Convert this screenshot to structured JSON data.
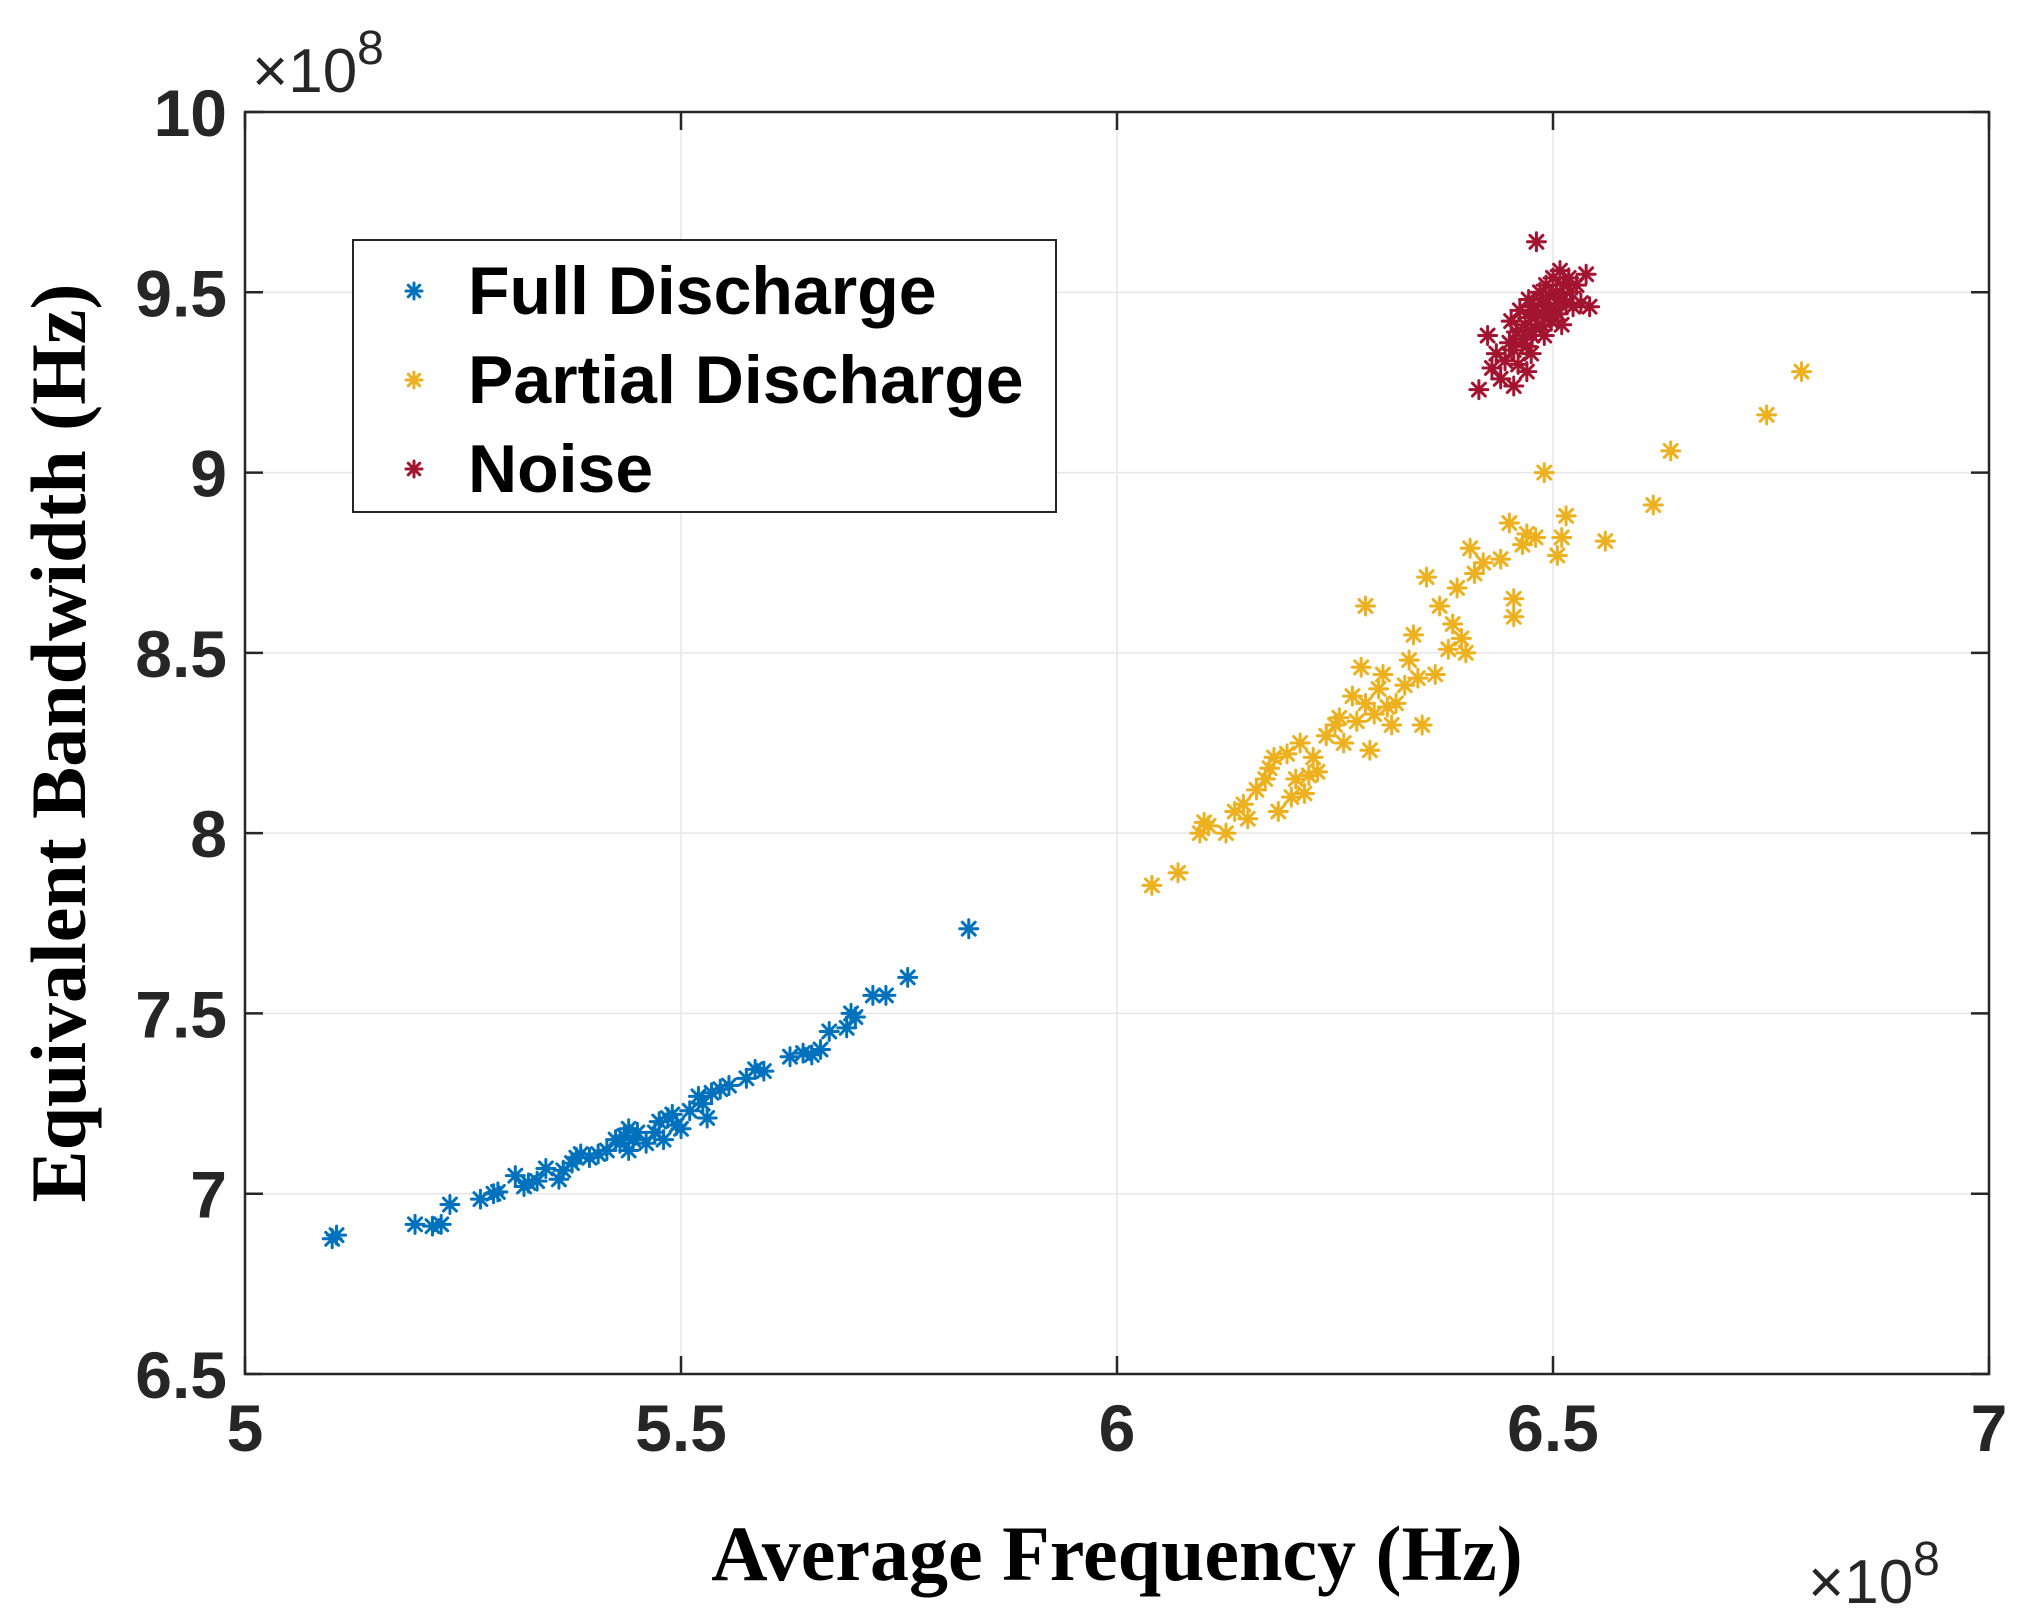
{
  "chart_data": {
    "type": "scatter",
    "xlabel": "Average Frequency (Hz)",
    "ylabel": "Equivalent Bandwidth (Hz)",
    "x_exponent_label": "×10",
    "x_exponent_power": "8",
    "y_exponent_label": "×10",
    "y_exponent_power": "8",
    "xlim": [
      5,
      7
    ],
    "ylim": [
      6.5,
      10
    ],
    "x_ticks": [
      "5",
      "5.5",
      "6",
      "6.5",
      "7"
    ],
    "y_ticks": [
      "6.5",
      "7",
      "7.5",
      "8",
      "8.5",
      "9",
      "9.5",
      "10"
    ],
    "x_tick_values": [
      5,
      5.5,
      6,
      6.5,
      7
    ],
    "y_tick_values": [
      6.5,
      7,
      7.5,
      8,
      8.5,
      9,
      9.5,
      10
    ],
    "grid": true,
    "legend_position": "top-left",
    "series": [
      {
        "name": "Full Discharge",
        "color": "#0072BD",
        "marker": "asterisk",
        "points": [
          [
            5.1,
            6.875
          ],
          [
            5.105,
            6.885
          ],
          [
            5.195,
            6.915
          ],
          [
            5.215,
            6.91
          ],
          [
            5.225,
            6.915
          ],
          [
            5.235,
            6.97
          ],
          [
            5.27,
            6.985
          ],
          [
            5.285,
            7.0
          ],
          [
            5.29,
            7.005
          ],
          [
            5.31,
            7.05
          ],
          [
            5.32,
            7.02
          ],
          [
            5.325,
            7.03
          ],
          [
            5.335,
            7.035
          ],
          [
            5.345,
            7.07
          ],
          [
            5.36,
            7.04
          ],
          [
            5.365,
            7.065
          ],
          [
            5.375,
            7.085
          ],
          [
            5.38,
            7.1
          ],
          [
            5.385,
            7.11
          ],
          [
            5.395,
            7.1
          ],
          [
            5.405,
            7.11
          ],
          [
            5.415,
            7.12
          ],
          [
            5.425,
            7.15
          ],
          [
            5.43,
            7.14
          ],
          [
            5.435,
            7.16
          ],
          [
            5.44,
            7.18
          ],
          [
            5.44,
            7.12
          ],
          [
            5.445,
            7.15
          ],
          [
            5.45,
            7.17
          ],
          [
            5.46,
            7.14
          ],
          [
            5.47,
            7.17
          ],
          [
            5.475,
            7.2
          ],
          [
            5.48,
            7.15
          ],
          [
            5.485,
            7.21
          ],
          [
            5.49,
            7.22
          ],
          [
            5.495,
            7.19
          ],
          [
            5.5,
            7.18
          ],
          [
            5.51,
            7.23
          ],
          [
            5.52,
            7.27
          ],
          [
            5.525,
            7.25
          ],
          [
            5.53,
            7.21
          ],
          [
            5.535,
            7.28
          ],
          [
            5.545,
            7.29
          ],
          [
            5.555,
            7.3
          ],
          [
            5.575,
            7.32
          ],
          [
            5.585,
            7.345
          ],
          [
            5.595,
            7.34
          ],
          [
            5.625,
            7.38
          ],
          [
            5.64,
            7.39
          ],
          [
            5.65,
            7.385
          ],
          [
            5.66,
            7.4
          ],
          [
            5.67,
            7.45
          ],
          [
            5.69,
            7.46
          ],
          [
            5.695,
            7.5
          ],
          [
            5.7,
            7.49
          ],
          [
            5.72,
            7.55
          ],
          [
            5.735,
            7.55
          ],
          [
            5.76,
            7.6
          ],
          [
            5.83,
            7.735
          ]
        ]
      },
      {
        "name": "Partial Discharge",
        "color": "#EDB120",
        "marker": "asterisk",
        "points": [
          [
            6.04,
            7.855
          ],
          [
            6.07,
            7.89
          ],
          [
            6.095,
            8.0
          ],
          [
            6.1,
            8.03
          ],
          [
            6.105,
            8.02
          ],
          [
            6.125,
            8.0
          ],
          [
            6.135,
            8.06
          ],
          [
            6.145,
            8.08
          ],
          [
            6.15,
            8.04
          ],
          [
            6.16,
            8.12
          ],
          [
            6.17,
            8.15
          ],
          [
            6.175,
            8.18
          ],
          [
            6.18,
            8.21
          ],
          [
            6.185,
            8.06
          ],
          [
            6.195,
            8.22
          ],
          [
            6.2,
            8.1
          ],
          [
            6.205,
            8.15
          ],
          [
            6.21,
            8.25
          ],
          [
            6.215,
            8.11
          ],
          [
            6.22,
            8.16
          ],
          [
            6.225,
            8.21
          ],
          [
            6.23,
            8.17
          ],
          [
            6.24,
            8.27
          ],
          [
            6.25,
            8.3
          ],
          [
            6.255,
            8.32
          ],
          [
            6.26,
            8.25
          ],
          [
            6.27,
            8.38
          ],
          [
            6.275,
            8.31
          ],
          [
            6.28,
            8.46
          ],
          [
            6.285,
            8.36
          ],
          [
            6.29,
            8.23
          ],
          [
            6.295,
            8.33
          ],
          [
            6.3,
            8.4
          ],
          [
            6.305,
            8.44
          ],
          [
            6.31,
            8.35
          ],
          [
            6.315,
            8.3
          ],
          [
            6.32,
            8.36
          ],
          [
            6.33,
            8.41
          ],
          [
            6.335,
            8.48
          ],
          [
            6.34,
            8.55
          ],
          [
            6.345,
            8.43
          ],
          [
            6.35,
            8.3
          ],
          [
            6.355,
            8.71
          ],
          [
            6.365,
            8.44
          ],
          [
            6.37,
            8.63
          ],
          [
            6.38,
            8.51
          ],
          [
            6.385,
            8.58
          ],
          [
            6.39,
            8.68
          ],
          [
            6.395,
            8.54
          ],
          [
            6.4,
            8.5
          ],
          [
            6.405,
            8.79
          ],
          [
            6.41,
            8.72
          ],
          [
            6.42,
            8.75
          ],
          [
            6.44,
            8.76
          ],
          [
            6.45,
            8.86
          ],
          [
            6.455,
            8.65
          ],
          [
            6.455,
            8.6
          ],
          [
            6.465,
            8.8
          ],
          [
            6.47,
            8.83
          ],
          [
            6.48,
            8.82
          ],
          [
            6.49,
            9.0
          ],
          [
            6.505,
            8.77
          ],
          [
            6.51,
            8.82
          ],
          [
            6.515,
            8.88
          ],
          [
            6.56,
            8.81
          ],
          [
            6.615,
            8.91
          ],
          [
            6.635,
            9.06
          ],
          [
            6.745,
            9.16
          ],
          [
            6.785,
            9.28
          ],
          [
            6.285,
            8.63
          ]
        ]
      },
      {
        "name": "Noise",
        "color": "#A2142F",
        "marker": "asterisk",
        "points": [
          [
            6.415,
            9.23
          ],
          [
            6.425,
            9.38
          ],
          [
            6.43,
            9.29
          ],
          [
            6.435,
            9.33
          ],
          [
            6.44,
            9.26
          ],
          [
            6.445,
            9.31
          ],
          [
            6.45,
            9.36
          ],
          [
            6.452,
            9.42
          ],
          [
            6.455,
            9.34
          ],
          [
            6.458,
            9.39
          ],
          [
            6.46,
            9.3
          ],
          [
            6.462,
            9.45
          ],
          [
            6.465,
            9.37
          ],
          [
            6.468,
            9.41
          ],
          [
            6.47,
            9.35
          ],
          [
            6.472,
            9.48
          ],
          [
            6.475,
            9.43
          ],
          [
            6.476,
            9.38
          ],
          [
            6.478,
            9.46
          ],
          [
            6.48,
            9.4
          ],
          [
            6.481,
            9.64
          ],
          [
            6.483,
            9.44
          ],
          [
            6.485,
            9.5
          ],
          [
            6.487,
            9.41
          ],
          [
            6.488,
            9.47
          ],
          [
            6.49,
            9.38
          ],
          [
            6.492,
            9.52
          ],
          [
            6.494,
            9.45
          ],
          [
            6.496,
            9.49
          ],
          [
            6.498,
            9.42
          ],
          [
            6.5,
            9.54
          ],
          [
            6.502,
            9.46
          ],
          [
            6.504,
            9.5
          ],
          [
            6.506,
            9.44
          ],
          [
            6.508,
            9.56
          ],
          [
            6.51,
            9.48
          ],
          [
            6.512,
            9.52
          ],
          [
            6.515,
            9.47
          ],
          [
            6.518,
            9.54
          ],
          [
            6.52,
            9.5
          ],
          [
            6.523,
            9.46
          ],
          [
            6.527,
            9.52
          ],
          [
            6.532,
            9.47
          ],
          [
            6.538,
            9.55
          ],
          [
            6.542,
            9.46
          ],
          [
            6.47,
            9.28
          ],
          [
            6.455,
            9.24
          ],
          [
            6.475,
            9.33
          ],
          [
            6.495,
            9.43
          ],
          [
            6.51,
            9.41
          ]
        ]
      }
    ]
  }
}
